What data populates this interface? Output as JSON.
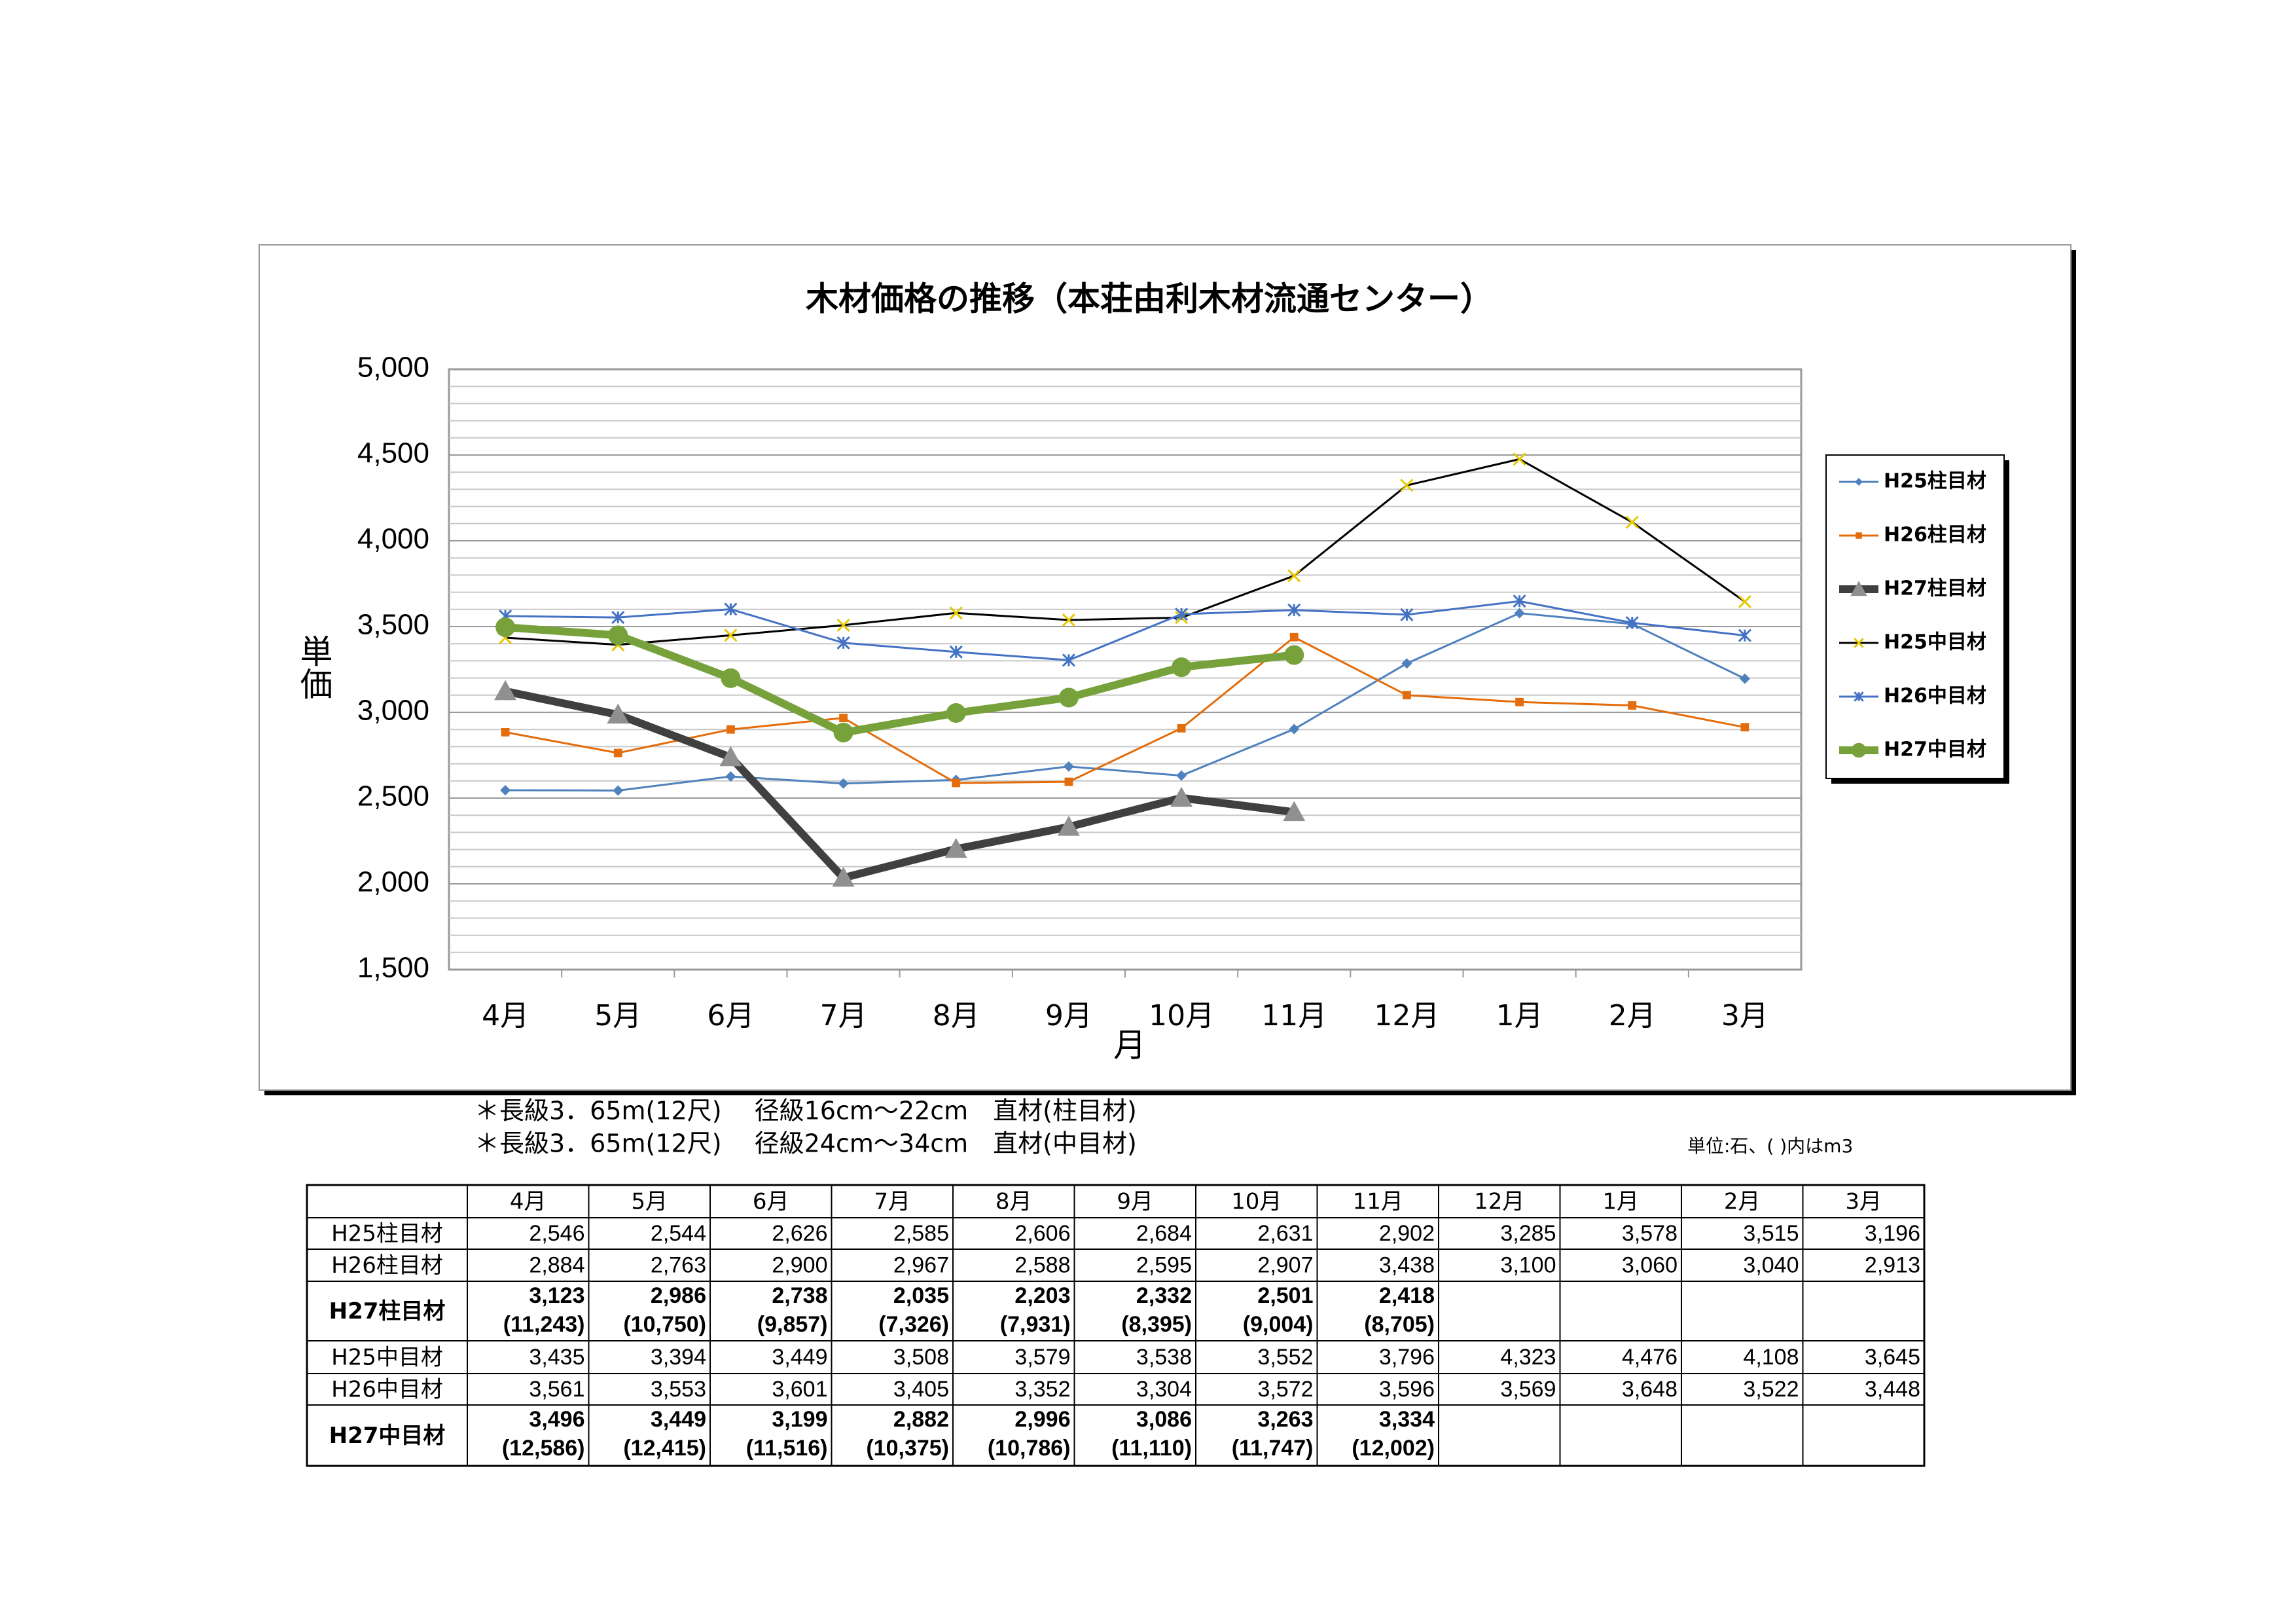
{
  "chart_data": {
    "type": "line",
    "title": "木材価格の推移（本荘由利木材流通センター）",
    "y_label": "単価",
    "x_label": "月",
    "categories": [
      "4月",
      "5月",
      "6月",
      "7月",
      "8月",
      "9月",
      "10月",
      "11月",
      "12月",
      "1月",
      "2月",
      "3月"
    ],
    "ylim": [
      1500,
      5000
    ],
    "yticks": [
      {
        "value": 1500,
        "label": "1,500"
      },
      {
        "value": 2000,
        "label": "2,000"
      },
      {
        "value": 2500,
        "label": "2,500"
      },
      {
        "value": 3000,
        "label": "3,000"
      },
      {
        "value": 3500,
        "label": "3,500"
      },
      {
        "value": 4000,
        "label": "4,000"
      },
      {
        "value": 4500,
        "label": "4,500"
      },
      {
        "value": 5000,
        "label": "5,000"
      }
    ],
    "grid": true,
    "legend": "right",
    "series": [
      {
        "name": "H25柱目材",
        "color": "#4f81bd",
        "marker": "diamond",
        "values": [
          2546,
          2544,
          2626,
          2585,
          2606,
          2684,
          2631,
          2902,
          3285,
          3578,
          3515,
          3196
        ]
      },
      {
        "name": "H26柱目材",
        "color": "#e46c0a",
        "marker": "square",
        "values": [
          2884,
          2763,
          2900,
          2967,
          2588,
          2595,
          2907,
          3438,
          3100,
          3060,
          3040,
          2913
        ]
      },
      {
        "name": "H27柱目材",
        "color": "#404040",
        "marker": "triangle",
        "values": [
          3123,
          2986,
          2738,
          2035,
          2203,
          2332,
          2501,
          2418,
          null,
          null,
          null,
          null
        ]
      },
      {
        "name": "H25中目材",
        "color": "#000000",
        "marker": "x",
        "values": [
          3435,
          3394,
          3449,
          3508,
          3579,
          3538,
          3552,
          3796,
          4323,
          4476,
          4108,
          3645
        ]
      },
      {
        "name": "H26中目材",
        "color": "#4472c4",
        "marker": "star",
        "values": [
          3561,
          3553,
          3601,
          3405,
          3352,
          3304,
          3572,
          3596,
          3569,
          3648,
          3522,
          3448
        ]
      },
      {
        "name": "H27中目材",
        "color": "#77a23b",
        "marker": "circle",
        "values": [
          3496,
          3449,
          3199,
          2882,
          2996,
          3086,
          3263,
          3334,
          null,
          null,
          null,
          null
        ]
      }
    ]
  },
  "notes": [
    "＊長級3．65m(12尺)　 径級16cm～22cm　直材(柱目材)",
    "＊長級3．65m(12尺)　 径級24cm～34cm　直材(中目材)"
  ],
  "unit": "単位:石、( )内はm3",
  "table": {
    "months": [
      "4月",
      "5月",
      "6月",
      "7月",
      "8月",
      "9月",
      "10月",
      "11月",
      "12月",
      "1月",
      "2月",
      "3月"
    ],
    "rows": [
      {
        "label": "H25柱目材",
        "cells": [
          "2,546",
          "2,544",
          "2,626",
          "2,585",
          "2,606",
          "2,684",
          "2,631",
          "2,902",
          "3,285",
          "3,578",
          "3,515",
          "3,196"
        ]
      },
      {
        "label": "H26柱目材",
        "cells": [
          "2,884",
          "2,763",
          "2,900",
          "2,967",
          "2,588",
          "2,595",
          "2,907",
          "3,438",
          "3,100",
          "3,060",
          "3,040",
          "2,913"
        ]
      },
      {
        "label": "H27柱目材",
        "cells": [
          "3,123",
          "2,986",
          "2,738",
          "2,035",
          "2,203",
          "2,332",
          "2,501",
          "2,418"
        ],
        "m3": [
          "(11,243)",
          "(10,750)",
          "(9,857)",
          "(7,326)",
          "(7,931)",
          "(8,395)",
          "(9,004)",
          "(8,705)"
        ]
      },
      {
        "label": "H25中目材",
        "cells": [
          "3,435",
          "3,394",
          "3,449",
          "3,508",
          "3,579",
          "3,538",
          "3,552",
          "3,796",
          "4,323",
          "4,476",
          "4,108",
          "3,645"
        ]
      },
      {
        "label": "H26中目材",
        "cells": [
          "3,561",
          "3,553",
          "3,601",
          "3,405",
          "3,352",
          "3,304",
          "3,572",
          "3,596",
          "3,569",
          "3,648",
          "3,522",
          "3,448"
        ]
      },
      {
        "label": "H27中目材",
        "cells": [
          "3,496",
          "3,449",
          "3,199",
          "2,882",
          "2,996",
          "3,086",
          "3,263",
          "3,334"
        ],
        "m3": [
          "(12,586)",
          "(12,415)",
          "(11,516)",
          "(10,375)",
          "(10,786)",
          "(11,110)",
          "(11,747)",
          "(12,002)"
        ]
      }
    ]
  }
}
